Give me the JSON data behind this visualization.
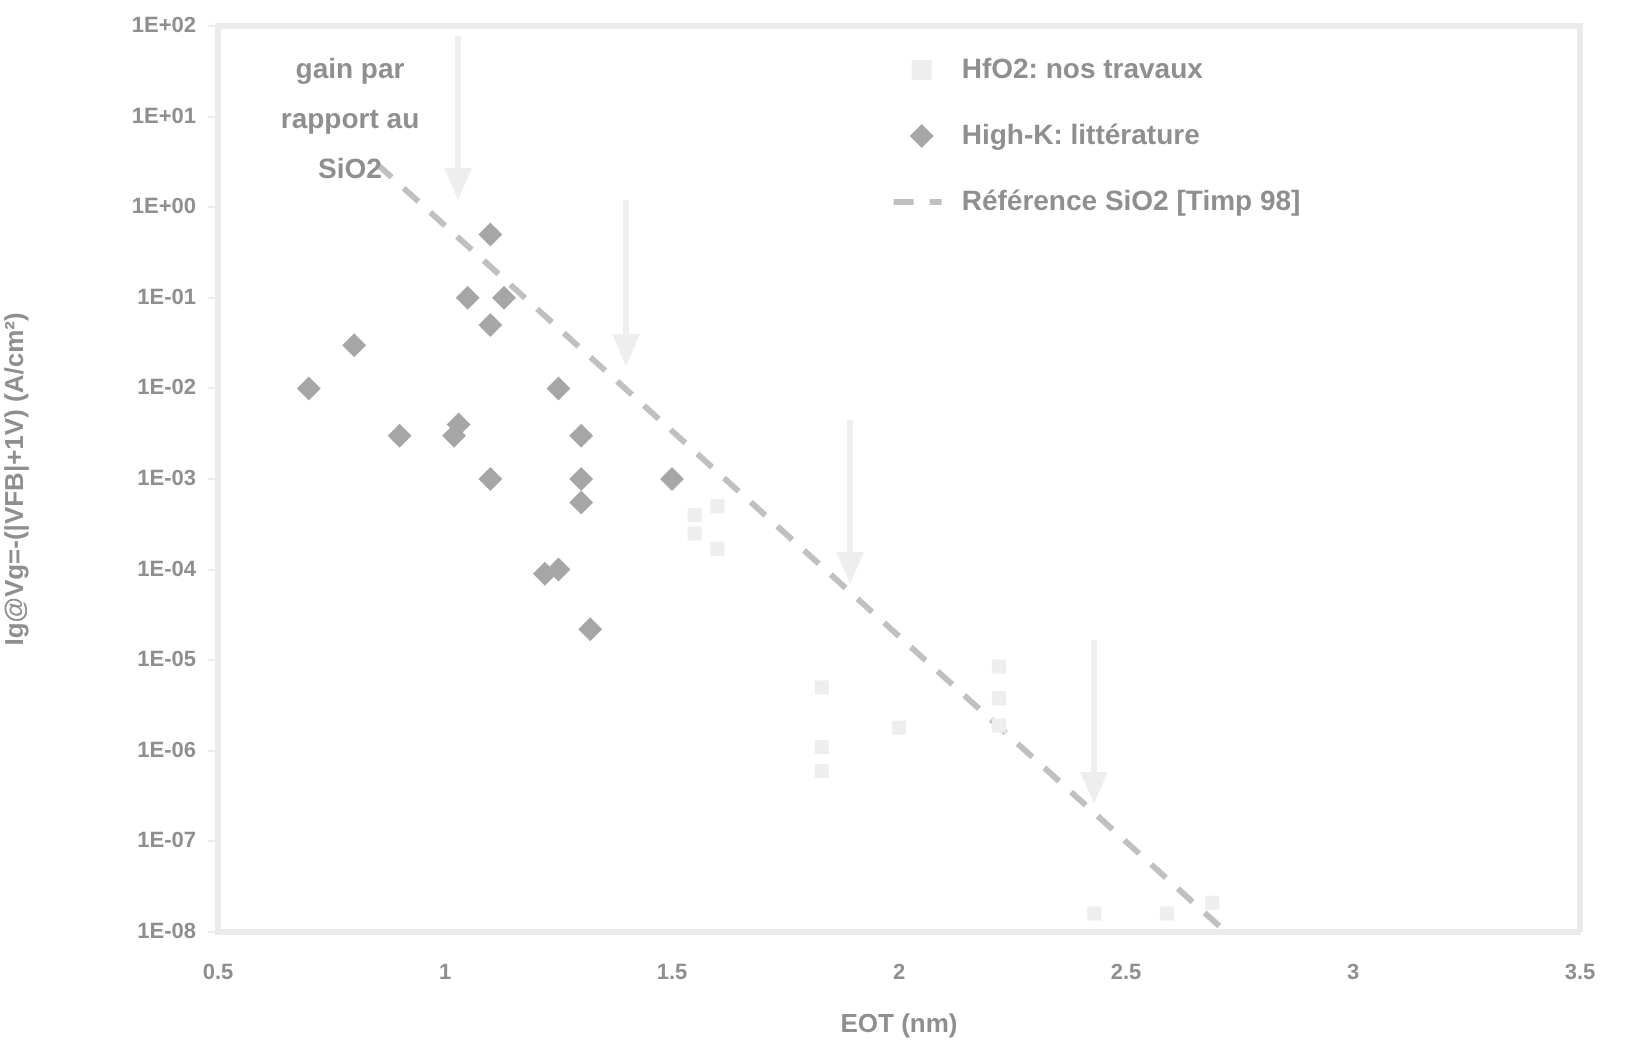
{
  "chart_data": {
    "type": "scatter",
    "xlabel": "EOT (nm)",
    "ylabel": "Ig@Vg=-(|VFB|+1V) (A/cm²)",
    "log": "y",
    "xlim": [
      0.5,
      3.5
    ],
    "xticks": [
      0.5,
      1,
      1.5,
      2,
      2.5,
      3,
      3.5
    ],
    "ylim": [
      1e-08,
      100
    ],
    "yticks": [
      {
        "value": 1e-08,
        "label": "1E-08"
      },
      {
        "value": 1e-07,
        "label": "1E-07"
      },
      {
        "value": 1e-06,
        "label": "1E-06"
      },
      {
        "value": 1e-05,
        "label": "1E-05"
      },
      {
        "value": 0.0001,
        "label": "1E-04"
      },
      {
        "value": 0.001,
        "label": "1E-03"
      },
      {
        "value": 0.01,
        "label": "1E-02"
      },
      {
        "value": 0.1,
        "label": "1E-01"
      },
      {
        "value": 1,
        "label": "1E+00"
      },
      {
        "value": 10,
        "label": "1E+01"
      },
      {
        "value": 100,
        "label": "1E+02"
      }
    ],
    "grid": false,
    "legend": "top right",
    "annotations": [
      "gain par rapport au SiO2"
    ],
    "series": [
      {
        "name": "HfO2: nos travaux",
        "color": "#eeeeee",
        "marker": "square",
        "x": [
          1.55,
          1.55,
          1.6,
          1.6,
          1.83,
          1.83,
          1.83,
          2.0,
          2.22,
          2.22,
          2.22,
          2.43,
          2.59,
          2.69
        ],
        "values": [
          0.0004,
          0.00025,
          0.0005,
          0.00017,
          5e-06,
          1.1e-06,
          6e-07,
          1.8e-06,
          8.5e-06,
          3.8e-06,
          1.9e-06,
          1.6e-08,
          1.6e-08,
          2.1e-08
        ]
      },
      {
        "name": "High-K: littérature",
        "color": "#a6a6a6",
        "marker": "diamond",
        "x": [
          1.1,
          1.05,
          1.13,
          1.1,
          0.8,
          0.7,
          1.25,
          0.9,
          1.03,
          1.02,
          1.3,
          1.1,
          1.3,
          1.5,
          1.3,
          1.22,
          1.25,
          1.32
        ],
        "values": [
          0.5,
          0.1,
          0.1,
          0.05,
          0.03,
          0.01,
          0.01,
          0.003,
          0.004,
          0.003,
          0.003,
          0.001,
          0.001,
          0.001,
          0.00055,
          9e-05,
          0.0001,
          2.2e-05
        ]
      },
      {
        "name": "Référence SiO2 [Timp 98]",
        "type": "line",
        "color": "#c0c0c0",
        "line_style": "dashed",
        "marker": "none",
        "x": [
          0.85,
          2.72
        ],
        "values": [
          3,
          1e-08
        ]
      }
    ]
  }
}
